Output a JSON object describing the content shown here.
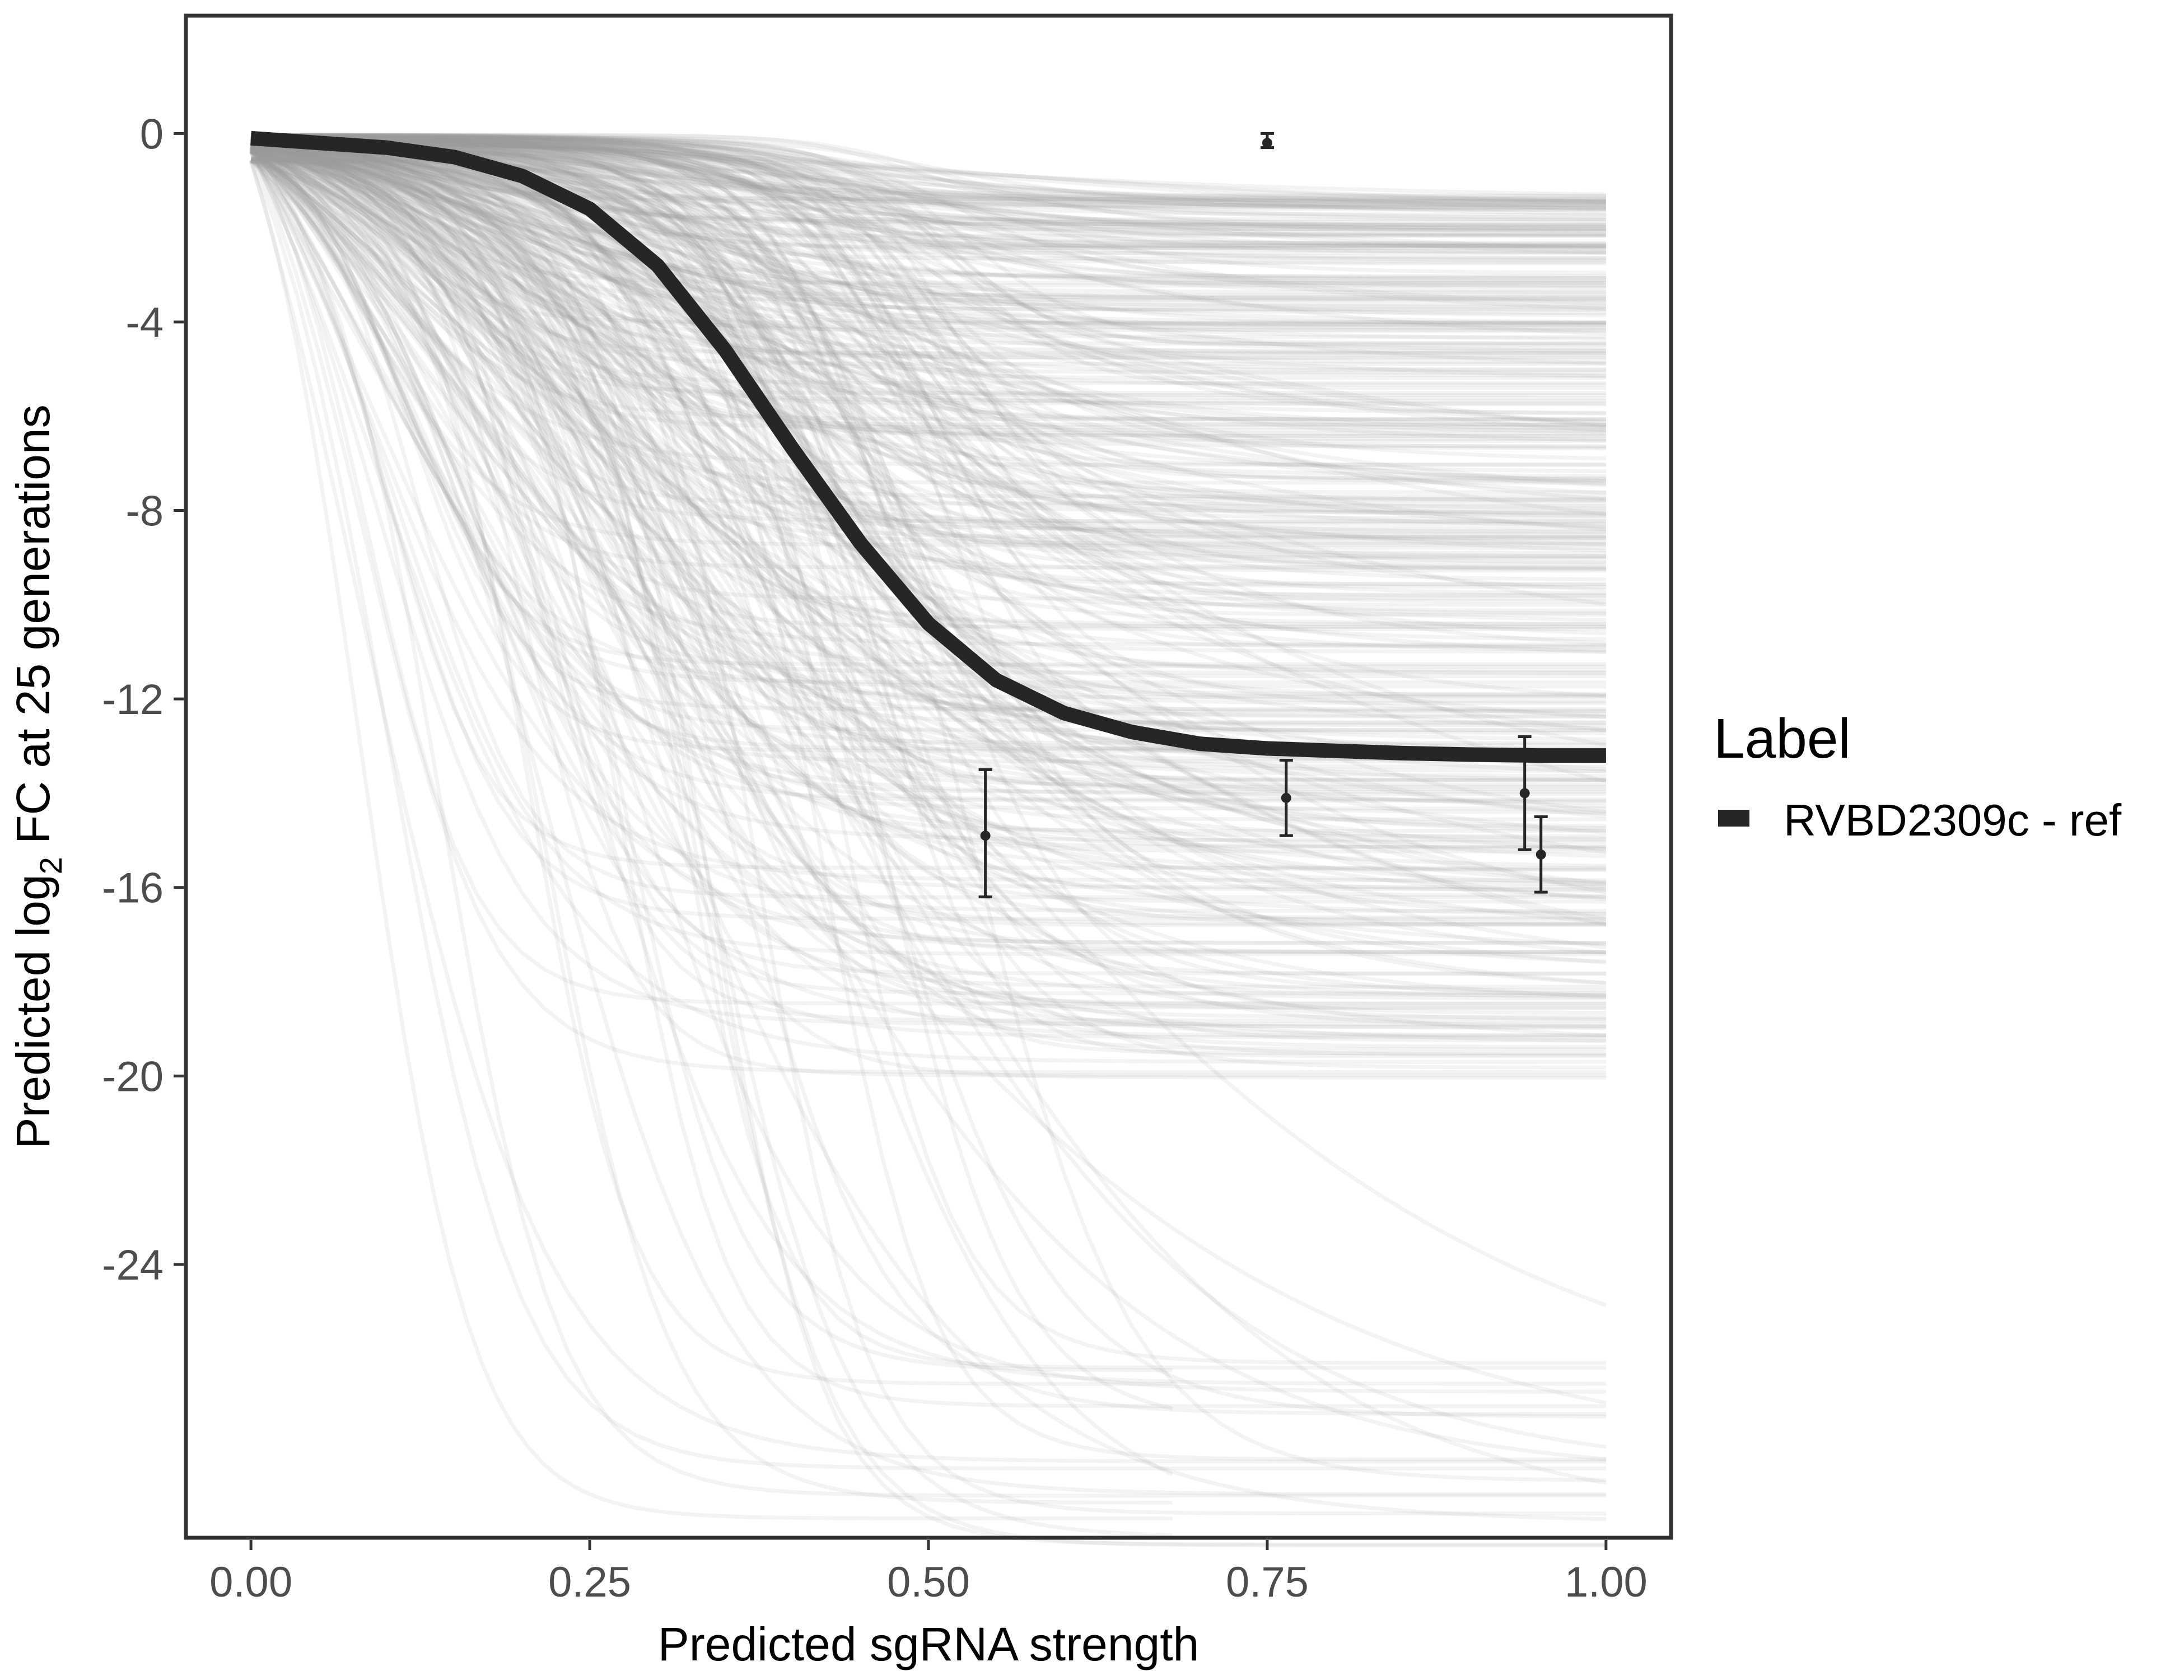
{
  "chart_data": {
    "type": "line",
    "title": "",
    "xlabel": "Predicted sgRNA strength",
    "ylabel_parts": {
      "before": "Predicted  log",
      "subscript": "2",
      "after": " FC at 25 generations"
    },
    "xlim": [
      -0.048,
      1.048
    ],
    "ylim": [
      -29.8,
      2.5
    ],
    "x_ticks": [
      0.0,
      0.25,
      0.5,
      0.75,
      1.0
    ],
    "x_tick_labels": [
      "0.00",
      "0.25",
      "0.50",
      "0.75",
      "1.00"
    ],
    "y_ticks": [
      0,
      -4,
      -8,
      -12,
      -16,
      -20,
      -24
    ],
    "y_tick_labels": [
      "0",
      "-4",
      "-8",
      "-12",
      "-16",
      "-20",
      "-24"
    ],
    "grid": false,
    "legend": {
      "title": "Label",
      "position": "right",
      "entries": [
        {
          "label": "RVBD2309c - ref",
          "color": "#262626"
        }
      ]
    },
    "main_curve": {
      "name": "RVBD2309c - ref",
      "color": "#262626",
      "x": [
        0,
        0.05,
        0.1,
        0.15,
        0.2,
        0.25,
        0.3,
        0.35,
        0.4,
        0.45,
        0.5,
        0.55,
        0.6,
        0.65,
        0.7,
        0.75,
        0.8,
        0.85,
        0.9,
        0.95,
        1.0
      ],
      "y": [
        -0.1,
        -0.2,
        -0.3,
        -0.5,
        -0.9,
        -1.6,
        -2.8,
        -4.6,
        -6.7,
        -8.7,
        -10.4,
        -11.6,
        -12.3,
        -12.7,
        -12.95,
        -13.05,
        -13.1,
        -13.15,
        -13.18,
        -13.2,
        -13.2
      ]
    },
    "uncertainty_curves": {
      "color": "#9e9e9e",
      "opacity": 0.12,
      "description_count": 450
    },
    "points": [
      {
        "x": 0.542,
        "y": -14.9,
        "ymin": -16.2,
        "ymax": -13.5
      },
      {
        "x": 0.75,
        "y": -0.2,
        "ymin": -0.3,
        "ymax": 0.0
      },
      {
        "x": 0.764,
        "y": -14.1,
        "ymin": -14.9,
        "ymax": -13.3
      },
      {
        "x": 0.94,
        "y": -14.0,
        "ymin": -15.2,
        "ymax": -12.8
      },
      {
        "x": 0.952,
        "y": -15.3,
        "ymin": -16.1,
        "ymax": -14.5
      }
    ]
  }
}
